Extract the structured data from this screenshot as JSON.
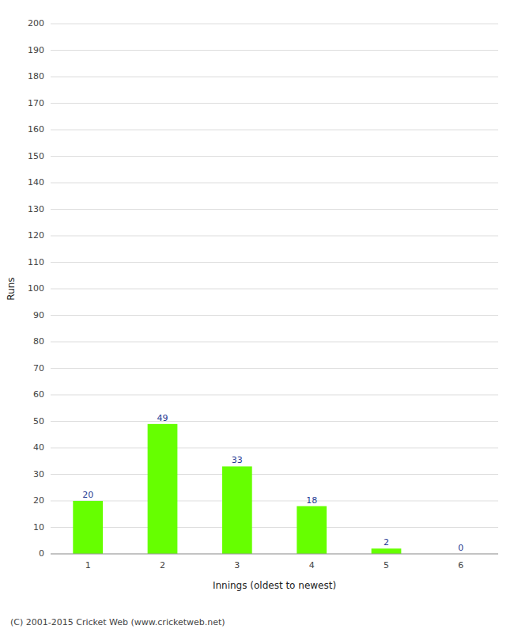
{
  "chart_data": {
    "type": "bar",
    "categories": [
      "1",
      "2",
      "3",
      "4",
      "5",
      "6"
    ],
    "values": [
      20,
      49,
      33,
      18,
      2,
      0
    ],
    "color": "#66ff00",
    "xlabel": "Innings (oldest to newest)",
    "ylabel": "Runs",
    "ylim": [
      0,
      200
    ],
    "yticks": [
      0,
      10,
      20,
      30,
      40,
      50,
      60,
      70,
      80,
      90,
      100,
      110,
      120,
      130,
      140,
      150,
      160,
      170,
      180,
      190,
      200
    ],
    "grid": true,
    "data_labels": true,
    "footer": "(C) 2001-2015 Cricket Web (www.cricketweb.net)"
  }
}
